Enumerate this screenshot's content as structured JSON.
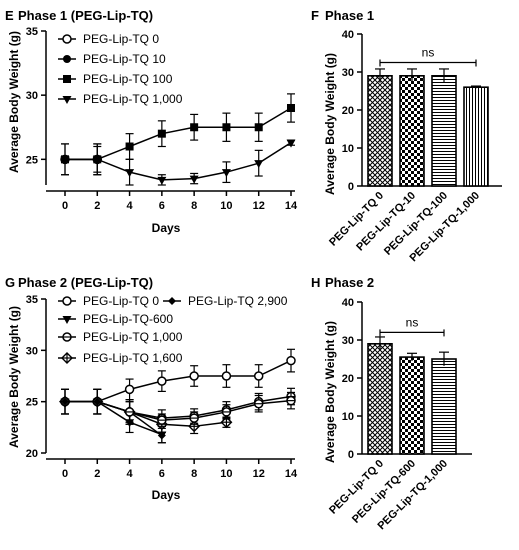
{
  "colors": {
    "ink": "#000000",
    "background": "#ffffff"
  },
  "chart_data": [
    {
      "panel": "E",
      "type": "line",
      "title": "Phase 1 (PEG-Lip-TQ)",
      "xlabel": "Days",
      "ylabel": "Average Body Weight (g)",
      "x": [
        0,
        2,
        4,
        6,
        8,
        10,
        12,
        14
      ],
      "xticks": [
        "0",
        "2",
        "4",
        "6",
        "8",
        "10",
        "12",
        "14"
      ],
      "yticks": [
        "25",
        "30",
        "35"
      ],
      "ylim": [
        23,
        35
      ],
      "grid": false,
      "legend_position": "top-left",
      "series": [
        {
          "name": "PEG-Lip-TQ 0",
          "marker": "circle-open",
          "values": [
            25,
            25,
            null,
            null,
            null,
            null,
            null,
            null
          ],
          "errors": [
            1.2,
            1.2,
            0,
            0,
            0,
            0,
            0,
            0
          ]
        },
        {
          "name": "PEG-Lip-TQ 10",
          "marker": "circle-filled",
          "values": [
            25,
            25,
            null,
            null,
            null,
            null,
            null,
            null
          ],
          "errors": [
            0,
            0,
            0,
            0,
            0,
            0,
            0,
            0
          ]
        },
        {
          "name": "PEG-Lip-TQ 100",
          "marker": "square-filled",
          "values": [
            25,
            25,
            26,
            27,
            27.5,
            27.5,
            27.5,
            29
          ],
          "errors": [
            1.2,
            1.2,
            1.0,
            1.0,
            1.0,
            1.1,
            1.1,
            1.1
          ]
        },
        {
          "name": "PEG-Lip-TQ 1,000",
          "marker": "triangle-down-filled",
          "values": [
            25,
            25,
            24,
            23.4,
            23.5,
            24,
            24.7,
            26.3
          ],
          "errors": [
            0,
            1.0,
            1.0,
            0.4,
            0.4,
            0.8,
            1.0,
            0.2
          ]
        }
      ]
    },
    {
      "panel": "F",
      "type": "bar",
      "title": "Phase 1",
      "xlabel": "",
      "ylabel": "Average Body Weight (g)",
      "categories": [
        "PEG-Lip-TQ 0",
        "PEG-Lip-TQ-10",
        "PEG-Lip-TQ-100",
        "PEG-Lip-TQ-1,000"
      ],
      "patterns": [
        "crosshatch",
        "checker",
        "horizontal",
        "vertical"
      ],
      "values": [
        29,
        29,
        29,
        26
      ],
      "errors": [
        1.8,
        1.8,
        1.8,
        0.3
      ],
      "yticks": [
        "0",
        "10",
        "20",
        "30",
        "40"
      ],
      "ylim": [
        0,
        40
      ],
      "annotation": {
        "text": "ns",
        "y": 32.5
      }
    },
    {
      "panel": "G",
      "type": "line",
      "title": "Phase 2 (PEG-Lip-TQ)",
      "xlabel": "Days",
      "ylabel": "Average Body Weight (g)",
      "x": [
        0,
        2,
        4,
        6,
        8,
        10,
        12,
        14
      ],
      "xticks": [
        "0",
        "2",
        "4",
        "6",
        "8",
        "10",
        "12",
        "14"
      ],
      "yticks": [
        "20",
        "25",
        "30",
        "35"
      ],
      "ylim": [
        20,
        35
      ],
      "grid": false,
      "legend_position": "top-left",
      "series": [
        {
          "name": "PEG-Lip-TQ 0",
          "marker": "circle-open",
          "values": [
            25,
            25,
            26.2,
            27,
            27.5,
            27.5,
            27.5,
            29
          ],
          "errors": [
            1.2,
            1.2,
            1.0,
            1.0,
            1.0,
            1.1,
            1.1,
            1.1
          ]
        },
        {
          "name": "PEG-Lip-TQ-600",
          "marker": "triangle-down-filled",
          "values": [
            25,
            25,
            23,
            21.8,
            null,
            null,
            null,
            null
          ],
          "errors": [
            1.2,
            1.2,
            1.0,
            0.8,
            0,
            0,
            0,
            0
          ]
        },
        {
          "name": "PEG-Lip-TQ 1,000",
          "marker": "circle-cross",
          "values": [
            25,
            25,
            24,
            23.4,
            23.6,
            24.2,
            25,
            25.5
          ],
          "errors": [
            1.2,
            1.2,
            1.2,
            0.8,
            0.7,
            0.8,
            0.8,
            0.8
          ]
        },
        {
          "name": "PEG-Lip-TQ 1,600",
          "marker": "diamond-cross",
          "values": [
            25,
            25,
            24,
            22.8,
            22.6,
            23,
            null,
            null
          ],
          "errors": [
            1.2,
            1.2,
            1.2,
            0.8,
            0.7,
            0.5,
            0,
            0
          ]
        },
        {
          "name": "PEG-Lip-TQ 2,900",
          "marker": "diamond-filled",
          "values": [
            25,
            25,
            24,
            21.7,
            null,
            null,
            null,
            null
          ],
          "errors": [
            0,
            0,
            1.0,
            0.7,
            0,
            0,
            0,
            0
          ]
        },
        {
          "name": "",
          "marker": "circle-cross",
          "values": [
            null,
            null,
            24,
            23.2,
            23.4,
            24,
            24.8,
            25.1
          ],
          "errors": [
            0,
            0,
            1.0,
            0.6,
            0.6,
            0.7,
            0.8,
            0.8
          ]
        }
      ]
    },
    {
      "panel": "H",
      "type": "bar",
      "title": "Phase 2",
      "xlabel": "",
      "ylabel": "Average Body Weight (g)",
      "categories": [
        "PEG-Lip-TQ 0",
        "PEG-Lip-TQ-600",
        "PEG-Lip-TQ-1,000"
      ],
      "patterns": [
        "crosshatch",
        "checker",
        "horizontal"
      ],
      "values": [
        29,
        25.5,
        25
      ],
      "errors": [
        1.8,
        1.0,
        1.8
      ],
      "yticks": [
        "0",
        "10",
        "20",
        "30",
        "40"
      ],
      "ylim": [
        0,
        40
      ],
      "annotation": {
        "text": "ns",
        "y": 32
      }
    }
  ]
}
